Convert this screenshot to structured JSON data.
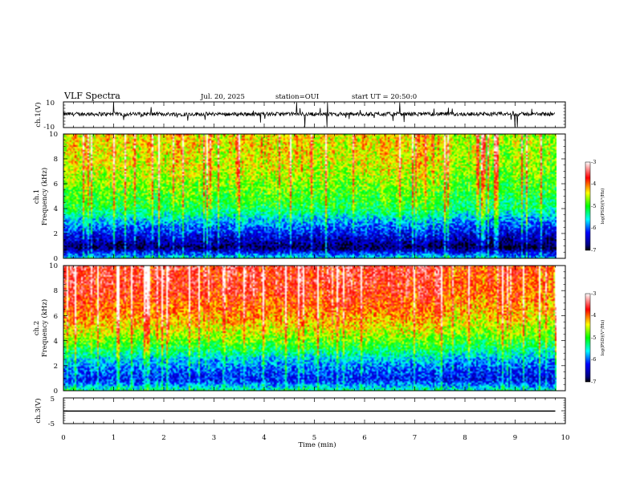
{
  "header": {
    "title": "VLF Spectra",
    "date": "Jul. 20, 2025",
    "station": "station=OUI",
    "start": "start UT = 20:50:0"
  },
  "chart_data": [
    {
      "type": "line",
      "name": "ch1-waveform",
      "ylabel": "ch.1(V)",
      "ylim": [
        -10,
        10
      ],
      "ytick_labels": [
        "10",
        "-10"
      ],
      "xlim": [
        0,
        10
      ],
      "description_values": {
        "baseline_V": 0.5,
        "typical_amplitude_V": 1.5
      }
    },
    {
      "type": "heatmap",
      "name": "ch1-spectrogram",
      "ylabel_top": "ch.1",
      "ylabel": "Frequency (kHz)",
      "ylim": [
        0,
        10
      ],
      "ytick_labels": [
        "0",
        "2",
        "4",
        "6",
        "8",
        "10"
      ],
      "xlim": [
        0,
        9.8
      ],
      "colorbar": {
        "label": "log(PSD)(V²/Hz)",
        "range": [
          -7,
          -3
        ],
        "tick_labels": [
          "-3",
          "-4",
          "-5",
          "-6",
          "-7"
        ]
      },
      "band_levels_log_psd": [
        {
          "freq_khz": 0.0,
          "level": -5.6
        },
        {
          "freq_khz": 0.8,
          "level": -6.8
        },
        {
          "freq_khz": 1.6,
          "level": -6.4
        },
        {
          "freq_khz": 2.4,
          "level": -6.0
        },
        {
          "freq_khz": 3.2,
          "level": -5.6
        },
        {
          "freq_khz": 4.0,
          "level": -5.1
        },
        {
          "freq_khz": 5.0,
          "level": -4.9
        },
        {
          "freq_khz": 6.0,
          "level": -4.7
        },
        {
          "freq_khz": 7.0,
          "level": -4.5
        },
        {
          "freq_khz": 8.0,
          "level": -4.4
        },
        {
          "freq_khz": 10.0,
          "level": -4.3
        }
      ]
    },
    {
      "type": "heatmap",
      "name": "ch2-spectrogram",
      "ylabel_top": "ch.2",
      "ylabel": "Frequency (kHz)",
      "ylim": [
        0,
        10
      ],
      "ytick_labels": [
        "0",
        "2",
        "4",
        "6",
        "8",
        "10"
      ],
      "xlim": [
        0,
        9.8
      ],
      "colorbar": {
        "label": "log(PSD)(V²/Hz)",
        "range": [
          -7,
          -3
        ],
        "tick_labels": [
          "-3",
          "-4",
          "-5",
          "-6",
          "-7"
        ]
      },
      "band_levels_log_psd": [
        {
          "freq_khz": 0.0,
          "level": -5.4
        },
        {
          "freq_khz": 0.8,
          "level": -6.2
        },
        {
          "freq_khz": 1.6,
          "level": -6.0
        },
        {
          "freq_khz": 2.4,
          "level": -5.7
        },
        {
          "freq_khz": 3.2,
          "level": -5.2
        },
        {
          "freq_khz": 4.0,
          "level": -4.8
        },
        {
          "freq_khz": 5.0,
          "level": -4.4
        },
        {
          "freq_khz": 6.0,
          "level": -4.1
        },
        {
          "freq_khz": 7.0,
          "level": -3.9
        },
        {
          "freq_khz": 8.0,
          "level": -3.7
        },
        {
          "freq_khz": 10.0,
          "level": -3.6
        }
      ]
    },
    {
      "type": "line",
      "name": "ch3-waveform",
      "ylabel": "ch.3(V)",
      "ylim": [
        -5,
        5
      ],
      "ytick_labels": [
        "5",
        "0",
        "-5"
      ],
      "xlim": [
        0,
        10
      ],
      "x": [
        0,
        9.8
      ],
      "y": [
        -0.1,
        -0.1
      ],
      "xlabel": "Time (min)",
      "xtick_labels": [
        "0",
        "1",
        "2",
        "3",
        "4",
        "5",
        "6",
        "7",
        "8",
        "9",
        "10"
      ]
    }
  ]
}
